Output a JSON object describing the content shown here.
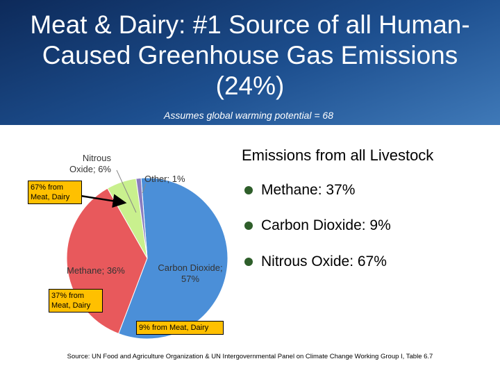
{
  "slide": {
    "title": "Meat & Dairy:  #1 Source of all Human-Caused Greenhouse Gas Emissions (24%)",
    "subtitle": "Assumes global warming potential = 68",
    "heading": "Emissions from all Livestock",
    "bullets": [
      "Methane:  37%",
      "Carbon Dioxide:  9%",
      "Nitrous Oxide:  67%"
    ],
    "callouts": [
      "67% from Meat, Dairy",
      "37% from Meat, Dairy",
      "9% from Meat, Dairy"
    ],
    "source": "Source:  UN Food and Agriculture Organization & UN Intergovernmental Panel on Climate Change Working Group I, Table 6.7"
  },
  "chart_data": {
    "type": "pie",
    "values": [
      1,
      57,
      36,
      6
    ],
    "value_labels": [
      "Other; 1%",
      "Carbon Dioxide; 57%",
      "Methane; 36%",
      "Nitrous Oxide; 6%"
    ],
    "colors": [
      "#8a7dc0",
      "#4b8fd8",
      "#e8595c",
      "#c9f08e"
    ]
  }
}
